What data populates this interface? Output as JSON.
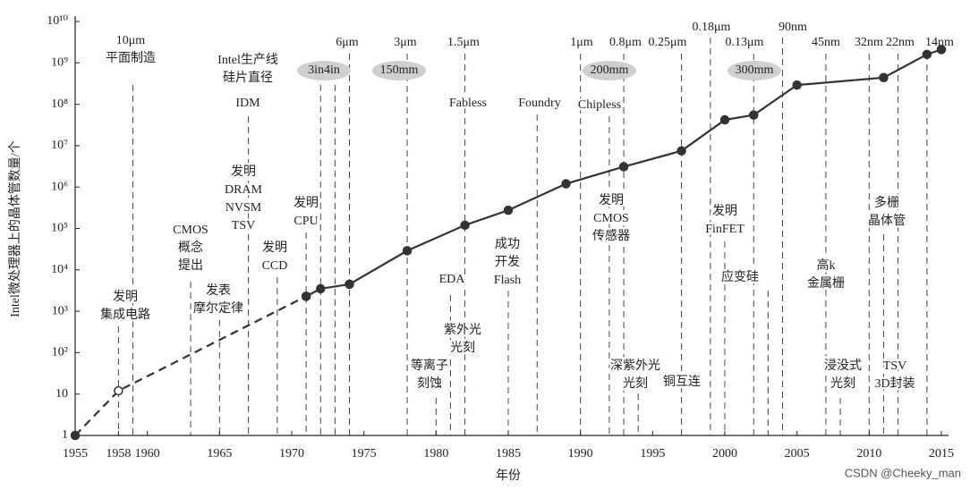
{
  "chart_data": {
    "type": "line",
    "xlabel": "年份",
    "ylabel": "Intel微处理器上的晶体管数量/个",
    "log_y": true,
    "xlim": [
      1955,
      2015
    ],
    "ylim": [
      1,
      10000000000
    ],
    "xticks": [
      1955,
      1958,
      1960,
      1965,
      1970,
      1975,
      1980,
      1985,
      1990,
      1995,
      2000,
      2005,
      2010,
      2015
    ],
    "yticks": [
      1,
      10,
      {
        "value": 100,
        "label": "10²"
      },
      {
        "value": 1000,
        "label": "10³"
      },
      {
        "value": 10000,
        "label": "10⁴"
      },
      {
        "value": 100000,
        "label": "10⁵"
      },
      {
        "value": 1000000,
        "label": "10⁶"
      },
      {
        "value": 10000000,
        "label": "10⁷"
      },
      {
        "value": 100000000,
        "label": "10⁸"
      },
      {
        "value": 1000000000,
        "label": "10⁹"
      },
      {
        "value": 10000000000,
        "label": "10¹⁰"
      }
    ],
    "series": [
      {
        "color": "#333333",
        "dashed": true,
        "x": [
          1955,
          1958,
          1971
        ],
        "values": [
          1,
          12,
          2300
        ],
        "hollow": [
          false,
          true,
          false
        ]
      },
      {
        "color": "#333333",
        "dashed": false,
        "x": [
          1971,
          1972,
          1974,
          1978,
          1982,
          1985,
          1989,
          1993,
          1997,
          2000,
          2002,
          2005,
          2011,
          2014,
          2015
        ],
        "values": [
          2300,
          3500,
          4500,
          29000,
          120000,
          275000,
          1200000,
          3100000,
          7500000,
          42000000,
          55000000,
          291000000,
          440000000,
          1600000000,
          2100000000
        ],
        "hollow": [
          false,
          false,
          false,
          false,
          false,
          false,
          false,
          false,
          false,
          false,
          false,
          false,
          false,
          false,
          false
        ]
      }
    ],
    "guides": [
      1958,
      1959,
      1963,
      1965,
      1967,
      1969,
      1971,
      1972,
      1973,
      1974,
      1978,
      1980,
      1981,
      1982,
      1985,
      1987,
      1990,
      1992,
      1993,
      1994,
      1997,
      1999,
      2000,
      2002,
      2003,
      2004,
      2007,
      2008,
      2010,
      2011,
      2012,
      2014
    ],
    "annotations": [
      [
        "10μm",
        "平面制造"
      ],
      [
        "Intel生产线",
        "硅片直径"
      ],
      [
        "IDM"
      ],
      [
        "发明",
        "DRAM",
        "NVSM",
        "TSV"
      ],
      [
        "3in4in"
      ],
      [
        "6μm"
      ],
      [
        "3μm"
      ],
      [
        "150mm"
      ],
      [
        "1.5μm"
      ],
      [
        "Fabless"
      ],
      [
        "Foundry"
      ],
      [
        "1μm"
      ],
      [
        "Chipless"
      ],
      [
        "0.8μm"
      ],
      [
        "200mm"
      ],
      [
        "0.25μm"
      ],
      [
        "0.18μm"
      ],
      [
        "0.13μm"
      ],
      [
        "300mm"
      ],
      [
        "90nm"
      ],
      [
        "45nm"
      ],
      [
        "32nm"
      ],
      [
        "22nm"
      ],
      [
        "14nm"
      ],
      [
        "CMOS",
        "概念",
        "提出"
      ],
      [
        "发表",
        "摩尔定律"
      ],
      [
        "发明",
        "CCD"
      ],
      [
        "发明",
        "CPU"
      ],
      [
        "发明",
        "集成电路"
      ],
      [
        "等离子",
        "刻蚀"
      ],
      [
        "EDA"
      ],
      [
        "紫外光",
        "光刻"
      ],
      [
        "成功",
        "开发",
        "Flash"
      ],
      [
        "发明",
        "CMOS",
        "传感器"
      ],
      [
        "深紫外光",
        "光刻"
      ],
      [
        "铜互连"
      ],
      [
        "发明",
        "FinFET"
      ],
      [
        "应变硅"
      ],
      [
        "高k",
        "金属栅"
      ],
      [
        "浸没式",
        "光刻"
      ],
      [
        "多栅",
        "晶体管"
      ],
      [
        "TSV",
        "3D封装"
      ]
    ],
    "watermark": "CSDN @Cheeky_man"
  }
}
